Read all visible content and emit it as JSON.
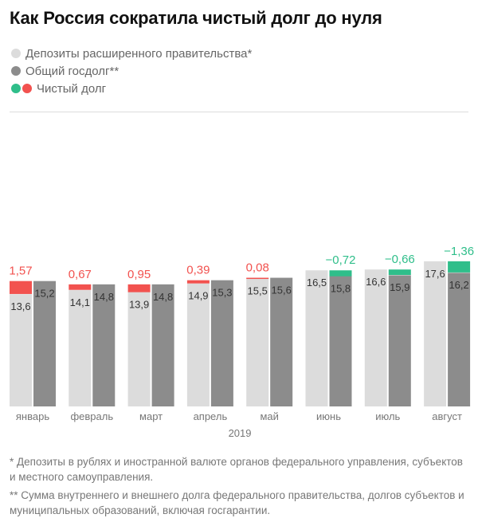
{
  "title": "Как Россия сократила чистый долг до нуля",
  "legend": {
    "deposits": "Депозиты расширенного правительства*",
    "debt": "Общий госдолг**",
    "net": "Чистый долг"
  },
  "colors": {
    "deposits": "#dcdcdc",
    "debt": "#8c8c8c",
    "net_positive": "#f2524f",
    "net_negative": "#2fbe8a",
    "text_dark": "#333333",
    "text_light": "#ffffff"
  },
  "footnotes": {
    "deposits": "* Депозиты в рублях и иностранной валюте органов федерального управления, субъектов и местного самоуправления.",
    "debt": "** Сумма внутреннего и внешнего долга федерального правительства, долгов субъектов и муниципальных образований, включая госгарантии."
  },
  "chart_data": {
    "type": "bar",
    "title": "Как Россия сократила чистый долг до нуля",
    "xlabel": "2019",
    "ylabel": "",
    "ylim": [
      0,
      19
    ],
    "grid": false,
    "legend_position": "top-left",
    "categories": [
      "январь",
      "февраль",
      "март",
      "апрель",
      "май",
      "июнь",
      "июль",
      "август"
    ],
    "series": [
      {
        "name": "Депозиты расширенного правительства*",
        "values": [
          13.6,
          14.1,
          13.9,
          14.9,
          15.5,
          16.5,
          16.6,
          17.6
        ],
        "value_labels": [
          "13,6",
          "14,1",
          "13,9",
          "14,9",
          "15,5",
          "16,5",
          "16,6",
          "17,6"
        ]
      },
      {
        "name": "Общий госдолг**",
        "values": [
          15.2,
          14.8,
          14.8,
          15.3,
          15.6,
          15.8,
          15.9,
          16.2
        ],
        "value_labels": [
          "15,2",
          "14,8",
          "14,8",
          "15,3",
          "15,6",
          "15,8",
          "15,9",
          "16,2"
        ]
      },
      {
        "name": "Чистый долг",
        "values": [
          1.57,
          0.67,
          0.95,
          0.39,
          0.08,
          -0.72,
          -0.66,
          -1.36
        ],
        "value_labels": [
          "1,57",
          "0,67",
          "0,95",
          "0,39",
          "0,08",
          "−0,72",
          "−0,66",
          "−1,36"
        ]
      }
    ]
  }
}
